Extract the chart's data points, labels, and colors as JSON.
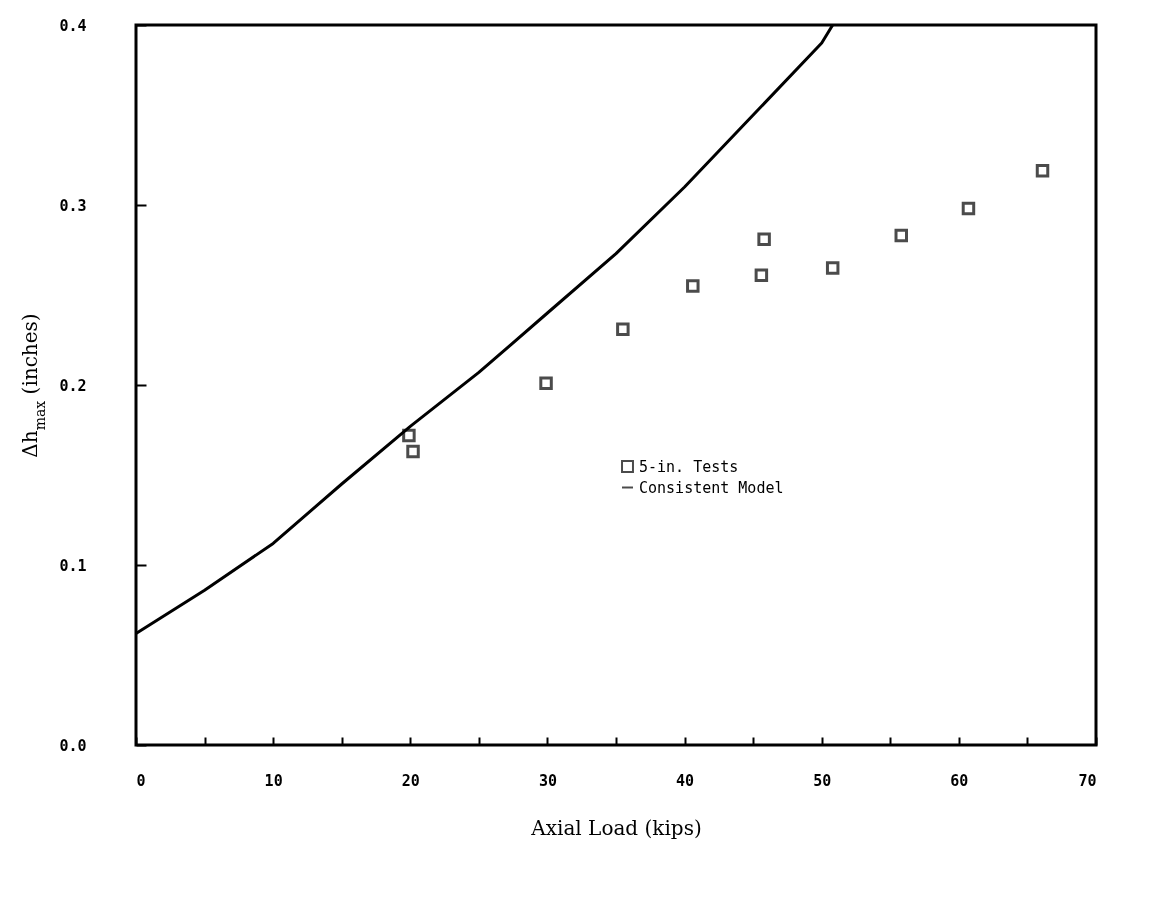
{
  "chart_data": {
    "type": "scatter",
    "xlabel": "Axial Load (kips)",
    "ylabel": "Δh$_{max}$ (inches)",
    "xlim": [
      0,
      70
    ],
    "ylim": [
      0,
      0.4
    ],
    "xticks": [
      0,
      {
        "value": 5,
        "label": null
      },
      10,
      {
        "value": 15,
        "label": null
      },
      20,
      {
        "value": 25,
        "label": null
      },
      30,
      {
        "value": 35,
        "label": null
      },
      40,
      {
        "value": 45,
        "label": null
      },
      50,
      {
        "value": 55,
        "label": null
      },
      60,
      {
        "value": 65,
        "label": null
      },
      70
    ],
    "yticks": [
      {
        "value": 0,
        "label": "0.0"
      },
      0.1,
      0.2,
      0.3,
      0.4
    ],
    "grid": false,
    "legend": "right",
    "series": [
      {
        "name": "5-in. Tests",
        "type": "scatter",
        "marker": "square",
        "color": "#000000",
        "x": [
          19.9,
          20.2,
          29.9,
          35.5,
          40.6,
          45.6,
          45.8,
          50.8,
          55.8,
          60.7,
          66.1
        ],
        "values": [
          0.172,
          0.163,
          0.201,
          0.231,
          0.255,
          0.261,
          0.281,
          0.265,
          0.283,
          0.298,
          0.319
        ]
      },
      {
        "name": "Consistent Model",
        "type": "line",
        "marker": "none",
        "color": "#000000",
        "line_style": "solid",
        "x": [
          0,
          5,
          10,
          15,
          20,
          25,
          30,
          35,
          40,
          45,
          50,
          50.8
        ],
        "values": [
          0.062,
          0.086,
          0.112,
          0.145,
          0.177,
          0.207,
          0.24,
          0.273,
          0.31,
          0.35,
          0.39,
          0.4
        ]
      }
    ]
  }
}
